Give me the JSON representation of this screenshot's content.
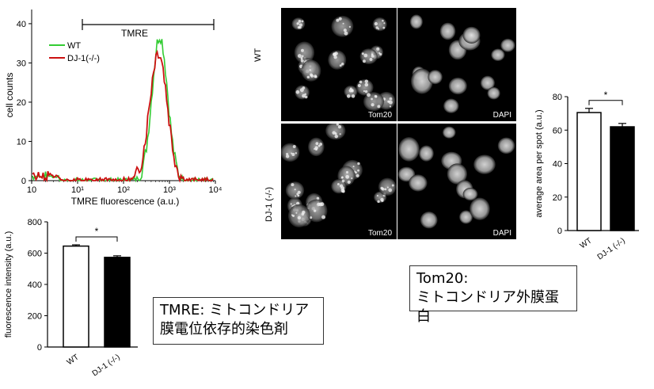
{
  "histogram": {
    "ylabel": "cell counts",
    "xlabel": "TMRE fluorescence (a.u.)",
    "gate_label": "TMRE",
    "legend": [
      {
        "name": "WT",
        "color": "#33cc33"
      },
      {
        "name": "DJ-1(-/-)",
        "color": "#cc1111"
      }
    ],
    "x_ticks": [
      "10",
      "10¹",
      "10²",
      "10³",
      "10⁴"
    ],
    "y_ticks": [
      "0",
      "10",
      "20",
      "30",
      "40"
    ]
  },
  "micrographs": {
    "row_labels": [
      "WT",
      "DJ-1 (-/-)"
    ],
    "channel_labels": [
      "Tom20",
      "DAPI"
    ]
  },
  "chart_data": [
    {
      "type": "bar",
      "id": "tmre_intensity",
      "categories": [
        "WT",
        "DJ-1 (-/-)"
      ],
      "values": [
        645,
        573
      ],
      "errors": [
        8,
        10
      ],
      "colors": [
        "#ffffff",
        "#000000"
      ],
      "ylabel": "fluorescence intensity (a.u.)",
      "ylim": [
        0,
        800
      ],
      "yticks": [
        0,
        200,
        400,
        600,
        800
      ],
      "significance": "*"
    },
    {
      "type": "bar",
      "id": "tom20_area",
      "categories": [
        "WT",
        "DJ-1 (-/-)"
      ],
      "values": [
        70.5,
        62
      ],
      "errors": [
        2.5,
        2
      ],
      "colors": [
        "#ffffff",
        "#000000"
      ],
      "ylabel": "average area per spot (a.u.)",
      "ylim": [
        0,
        80
      ],
      "yticks": [
        0,
        20,
        40,
        60,
        80
      ],
      "significance": "*"
    }
  ],
  "notes": {
    "tom20": [
      "Tom20:",
      "ミトコンドリア外膜蛋白"
    ],
    "tmre": [
      "TMRE: ミトコンドリア",
      "膜電位依存的染色剤"
    ]
  }
}
